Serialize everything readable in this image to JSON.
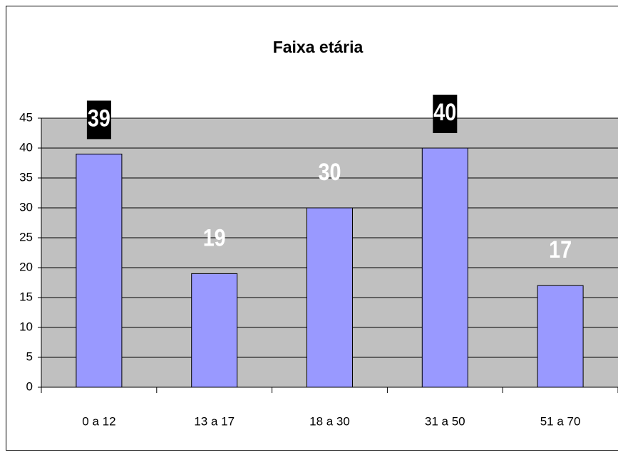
{
  "chart_data": {
    "type": "bar",
    "title": "Faixa etária",
    "categories": [
      "0 a 12",
      "13 a 17",
      "18 a 30",
      "31 a 50",
      "51 a 70"
    ],
    "values": [
      39,
      19,
      30,
      40,
      17
    ],
    "color": "#9999ff",
    "ylim": [
      0,
      45
    ],
    "yticks": [
      0,
      5,
      10,
      15,
      20,
      25,
      30,
      35,
      40,
      45
    ],
    "grid": true
  }
}
